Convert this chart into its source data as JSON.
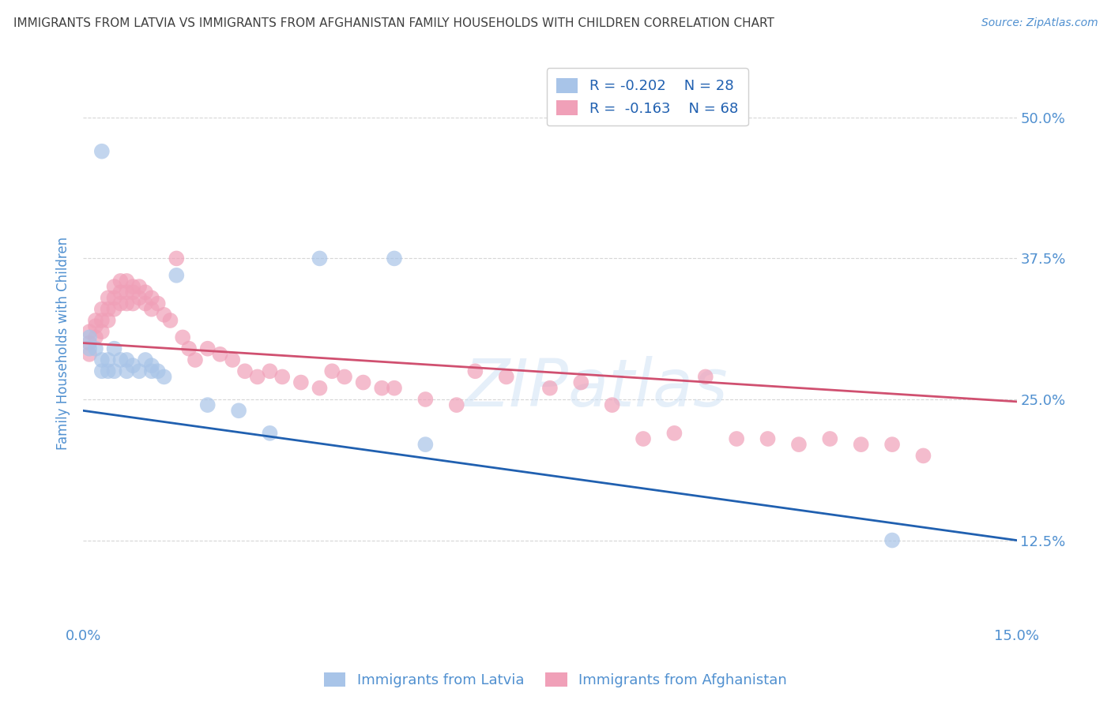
{
  "title": "IMMIGRANTS FROM LATVIA VS IMMIGRANTS FROM AFGHANISTAN FAMILY HOUSEHOLDS WITH CHILDREN CORRELATION CHART",
  "source": "Source: ZipAtlas.com",
  "ylabel": "Family Households with Children",
  "legend_blue_r": "R = -0.202",
  "legend_blue_n": "N = 28",
  "legend_pink_r": "R =  -0.163",
  "legend_pink_n": "N = 68",
  "blue_scatter_color": "#a8c4e8",
  "pink_scatter_color": "#f0a0b8",
  "blue_line_color": "#2060b0",
  "pink_line_color": "#d05070",
  "background_color": "#ffffff",
  "grid_color": "#cccccc",
  "title_color": "#404040",
  "axis_label_color": "#5090d0",
  "blue_points_x": [
    0.003,
    0.001,
    0.001,
    0.002,
    0.003,
    0.003,
    0.004,
    0.004,
    0.005,
    0.005,
    0.006,
    0.007,
    0.007,
    0.008,
    0.009,
    0.01,
    0.011,
    0.011,
    0.012,
    0.013,
    0.015,
    0.02,
    0.025,
    0.03,
    0.038,
    0.05,
    0.055,
    0.13
  ],
  "blue_points_y": [
    0.47,
    0.305,
    0.295,
    0.295,
    0.285,
    0.275,
    0.285,
    0.275,
    0.295,
    0.275,
    0.285,
    0.285,
    0.275,
    0.28,
    0.275,
    0.285,
    0.28,
    0.275,
    0.275,
    0.27,
    0.36,
    0.245,
    0.24,
    0.22,
    0.375,
    0.375,
    0.21,
    0.125
  ],
  "pink_points_x": [
    0.001,
    0.001,
    0.001,
    0.002,
    0.002,
    0.002,
    0.003,
    0.003,
    0.003,
    0.004,
    0.004,
    0.004,
    0.005,
    0.005,
    0.005,
    0.006,
    0.006,
    0.006,
    0.007,
    0.007,
    0.007,
    0.008,
    0.008,
    0.008,
    0.009,
    0.009,
    0.01,
    0.01,
    0.011,
    0.011,
    0.012,
    0.013,
    0.014,
    0.015,
    0.016,
    0.017,
    0.018,
    0.02,
    0.022,
    0.024,
    0.026,
    0.028,
    0.03,
    0.032,
    0.035,
    0.038,
    0.04,
    0.042,
    0.045,
    0.048,
    0.05,
    0.055,
    0.06,
    0.063,
    0.068,
    0.075,
    0.08,
    0.085,
    0.09,
    0.095,
    0.1,
    0.105,
    0.11,
    0.115,
    0.12,
    0.125,
    0.13,
    0.135
  ],
  "pink_points_y": [
    0.31,
    0.3,
    0.29,
    0.32,
    0.315,
    0.305,
    0.33,
    0.32,
    0.31,
    0.34,
    0.33,
    0.32,
    0.35,
    0.34,
    0.33,
    0.355,
    0.345,
    0.335,
    0.355,
    0.345,
    0.335,
    0.35,
    0.345,
    0.335,
    0.35,
    0.34,
    0.345,
    0.335,
    0.34,
    0.33,
    0.335,
    0.325,
    0.32,
    0.375,
    0.305,
    0.295,
    0.285,
    0.295,
    0.29,
    0.285,
    0.275,
    0.27,
    0.275,
    0.27,
    0.265,
    0.26,
    0.275,
    0.27,
    0.265,
    0.26,
    0.26,
    0.25,
    0.245,
    0.275,
    0.27,
    0.26,
    0.265,
    0.245,
    0.215,
    0.22,
    0.27,
    0.215,
    0.215,
    0.21,
    0.215,
    0.21,
    0.21,
    0.2
  ],
  "xlim": [
    0.0,
    0.15
  ],
  "ylim": [
    0.05,
    0.55
  ],
  "blue_trend_x": [
    0.0,
    0.15
  ],
  "blue_trend_y": [
    0.24,
    0.125
  ],
  "pink_trend_x": [
    0.0,
    0.15
  ],
  "pink_trend_y": [
    0.3,
    0.248
  ]
}
